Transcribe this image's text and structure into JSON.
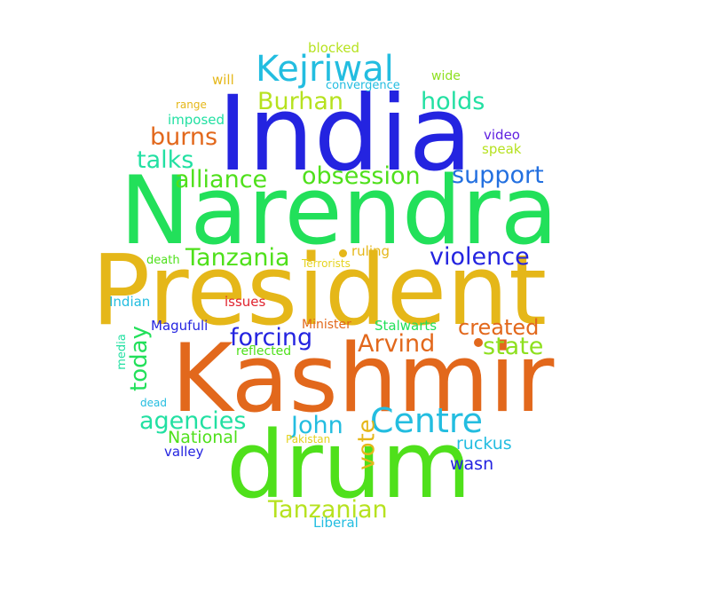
{
  "words": [
    {
      "text": "India",
      "color": "#2424e0"
    },
    {
      "text": "Narendra",
      "color": "#22e05a"
    },
    {
      "text": "President",
      "color": "#e5b719"
    },
    {
      "text": "Kashmir",
      "color": "#e2681c"
    },
    {
      "text": "drum",
      "color": "#4fe01b"
    },
    {
      "text": "Kejriwal",
      "color": "#23bde0"
    },
    {
      "text": "Centre",
      "color": "#23bde0"
    },
    {
      "text": "Burhan",
      "color": "#b6e21f"
    },
    {
      "text": "holds",
      "color": "#22e0a2"
    },
    {
      "text": "burns",
      "color": "#e2681c"
    },
    {
      "text": "talks",
      "color": "#22e0a2"
    },
    {
      "text": "alliance",
      "color": "#4fe01b"
    },
    {
      "text": "obsession",
      "color": "#4fe01b"
    },
    {
      "text": "support",
      "color": "#2370e0"
    },
    {
      "text": "Tanzania",
      "color": "#4fe01b"
    },
    {
      "text": "violence",
      "color": "#2424e0"
    },
    {
      "text": "forcing",
      "color": "#2424e0"
    },
    {
      "text": "Arvind",
      "color": "#e2681c"
    },
    {
      "text": "created",
      "color": "#e2681c"
    },
    {
      "text": "state",
      "color": "#8ee01f"
    },
    {
      "text": "today",
      "color": "#22e05a"
    },
    {
      "text": "agencies",
      "color": "#22e0a2"
    },
    {
      "text": "John",
      "color": "#23bde0"
    },
    {
      "text": "vote",
      "color": "#e5b719"
    },
    {
      "text": "National",
      "color": "#4fe01b"
    },
    {
      "text": "ruckus",
      "color": "#23bde0"
    },
    {
      "text": "wasn",
      "color": "#2424e0"
    },
    {
      "text": "Tanzanian",
      "color": "#b6e21f"
    },
    {
      "text": "Liberal",
      "color": "#23bde0"
    },
    {
      "text": "blocked",
      "color": "#b6e21f"
    },
    {
      "text": "wide",
      "color": "#8ee01f"
    },
    {
      "text": "will",
      "color": "#e5b719"
    },
    {
      "text": "convergence",
      "color": "#23bde0"
    },
    {
      "text": "range",
      "color": "#e5b719"
    },
    {
      "text": "imposed",
      "color": "#22e0a2"
    },
    {
      "text": "video",
      "color": "#5f20e0"
    },
    {
      "text": "speak",
      "color": "#b6e21f"
    },
    {
      "text": "ruling",
      "color": "#e5b719"
    },
    {
      "text": "death",
      "color": "#4fe01b"
    },
    {
      "text": "Terrorists",
      "color": "#e5d31f"
    },
    {
      "text": "Indian",
      "color": "#23bde0"
    },
    {
      "text": "issues",
      "color": "#e0242f"
    },
    {
      "text": "Magufuli",
      "color": "#2424e0"
    },
    {
      "text": "Minister",
      "color": "#e2681c"
    },
    {
      "text": "Stalwarts",
      "color": "#22e05a"
    },
    {
      "text": "reflected",
      "color": "#4fe01b"
    },
    {
      "text": "media",
      "color": "#22e0a2"
    },
    {
      "text": "dead",
      "color": "#23bde0"
    },
    {
      "text": "valley",
      "color": "#2424e0"
    },
    {
      "text": "Pakistan",
      "color": "#e5d31f"
    },
    {
      "text": "dot-a",
      "color": "#e5b719"
    },
    {
      "text": "dot-b",
      "color": "#e2681c"
    }
  ]
}
